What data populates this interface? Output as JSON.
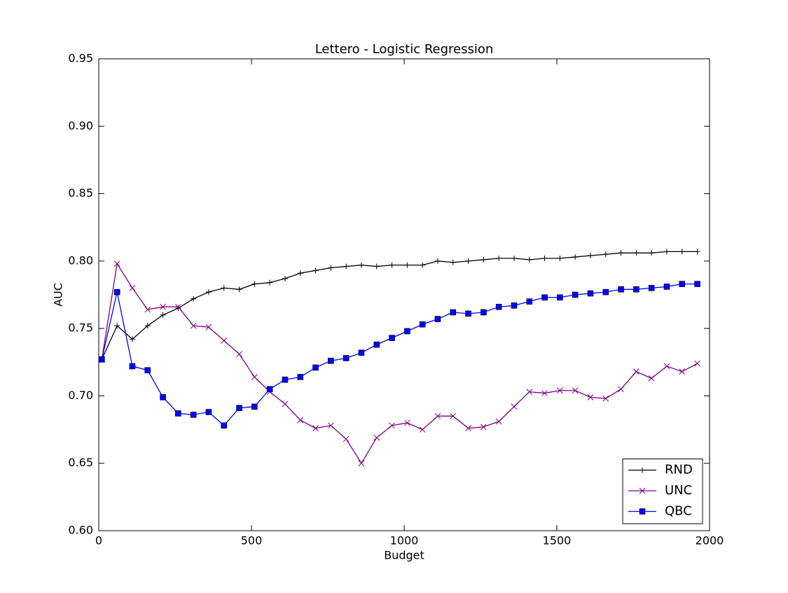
{
  "chart_data": {
    "type": "line",
    "title": "Lettero - Logistic Regression",
    "x_label": "Budget",
    "y_label": "AUC",
    "x": [
      10,
      60,
      110,
      160,
      210,
      260,
      310,
      360,
      410,
      460,
      510,
      560,
      610,
      660,
      710,
      760,
      810,
      860,
      910,
      960,
      1010,
      1060,
      1110,
      1160,
      1210,
      1260,
      1310,
      1360,
      1410,
      1460,
      1510,
      1560,
      1610,
      1660,
      1710,
      1760,
      1810,
      1860,
      1910,
      1960
    ],
    "series": [
      {
        "name": "RND",
        "color": "#000000",
        "marker": "plus",
        "values": [
          0.727,
          0.752,
          0.742,
          0.752,
          0.76,
          0.765,
          0.772,
          0.777,
          0.78,
          0.779,
          0.783,
          0.784,
          0.787,
          0.791,
          0.793,
          0.795,
          0.796,
          0.797,
          0.796,
          0.797,
          0.797,
          0.797,
          0.8,
          0.799,
          0.8,
          0.801,
          0.802,
          0.802,
          0.801,
          0.802,
          0.802,
          0.803,
          0.804,
          0.805,
          0.806,
          0.806,
          0.806,
          0.807,
          0.807,
          0.807
        ]
      },
      {
        "name": "UNC",
        "color": "#800080",
        "marker": "x",
        "values": [
          0.727,
          0.798,
          0.78,
          0.764,
          0.766,
          0.766,
          0.752,
          0.751,
          0.741,
          0.731,
          0.714,
          0.703,
          0.694,
          0.682,
          0.676,
          0.678,
          0.668,
          0.65,
          0.669,
          0.678,
          0.68,
          0.675,
          0.685,
          0.685,
          0.676,
          0.677,
          0.681,
          0.692,
          0.703,
          0.702,
          0.704,
          0.704,
          0.699,
          0.698,
          0.705,
          0.718,
          0.713,
          0.722,
          0.718,
          0.724
        ]
      },
      {
        "name": "QBC",
        "color": "#0000ff",
        "marker": "square",
        "values": [
          0.727,
          0.777,
          0.722,
          0.719,
          0.699,
          0.687,
          0.686,
          0.688,
          0.678,
          0.691,
          0.692,
          0.705,
          0.712,
          0.714,
          0.721,
          0.726,
          0.728,
          0.732,
          0.738,
          0.743,
          0.748,
          0.753,
          0.757,
          0.762,
          0.761,
          0.762,
          0.766,
          0.767,
          0.77,
          0.773,
          0.773,
          0.775,
          0.776,
          0.777,
          0.779,
          0.779,
          0.78,
          0.781,
          0.783,
          0.783
        ]
      }
    ],
    "xlim": [
      0,
      2000
    ],
    "xticks": [
      0,
      500,
      1000,
      1500,
      2000
    ],
    "ylim": [
      0.6,
      0.95
    ],
    "yticks": [
      {
        "value": 0.6,
        "label": "0.60"
      },
      {
        "value": 0.65,
        "label": "0.65"
      },
      {
        "value": 0.7,
        "label": "0.70"
      },
      {
        "value": 0.75,
        "label": "0.75"
      },
      {
        "value": 0.8,
        "label": "0.80"
      },
      {
        "value": 0.85,
        "label": "0.85"
      },
      {
        "value": 0.9,
        "label": "0.90"
      },
      {
        "value": 0.95,
        "label": "0.95"
      }
    ],
    "legend": "lower right",
    "grid": false
  }
}
